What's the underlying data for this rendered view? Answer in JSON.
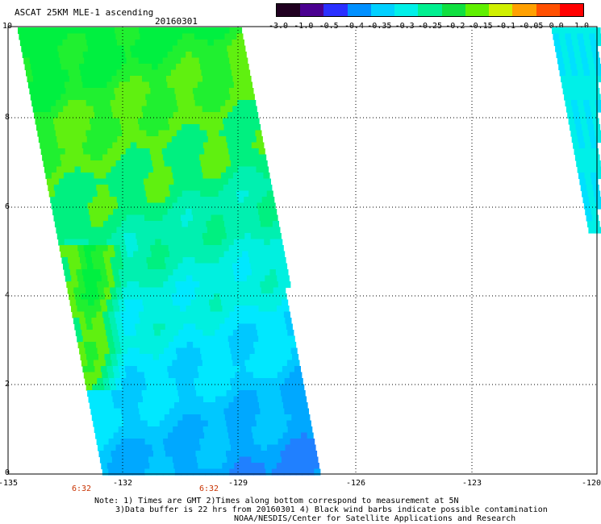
{
  "header": {
    "title": "ASCAT 25KM MLE-1 ascending",
    "date": "20160301"
  },
  "colorbar": {
    "labels": [
      "-3.0",
      "-1.0",
      "-0.5",
      "-0.4",
      "-0.35",
      "-0.3",
      "-0.25",
      "-0.2",
      "-0.15",
      "-0.1",
      "-0.05",
      "0.0",
      "1.0"
    ],
    "colors": [
      "#200020",
      "#4a0090",
      "#2a30ff",
      "#0090ff",
      "#00d0ff",
      "#00f0e8",
      "#00f090",
      "#10e040",
      "#60f000",
      "#d0f000",
      "#ffa000",
      "#ff5000",
      "#ff0000"
    ]
  },
  "axes": {
    "y_ticks": [
      "0",
      "2",
      "4",
      "6",
      "8",
      "10"
    ],
    "x_ticks": [
      "-135",
      "-132",
      "-129",
      "-126",
      "-123",
      "-120"
    ],
    "time_marks": [
      "6:32",
      "6:32"
    ]
  },
  "notes": {
    "line1": "Note: 1) Times are GMT 2)Times along bottom correspond to measurement at 5N",
    "line2": "3)Data buffer is 22 hrs from 20160301 4) Black wind barbs indicate possible contamination",
    "line3": "NOAA/NESDIS/Center for Satellite Applications and Research"
  }
}
